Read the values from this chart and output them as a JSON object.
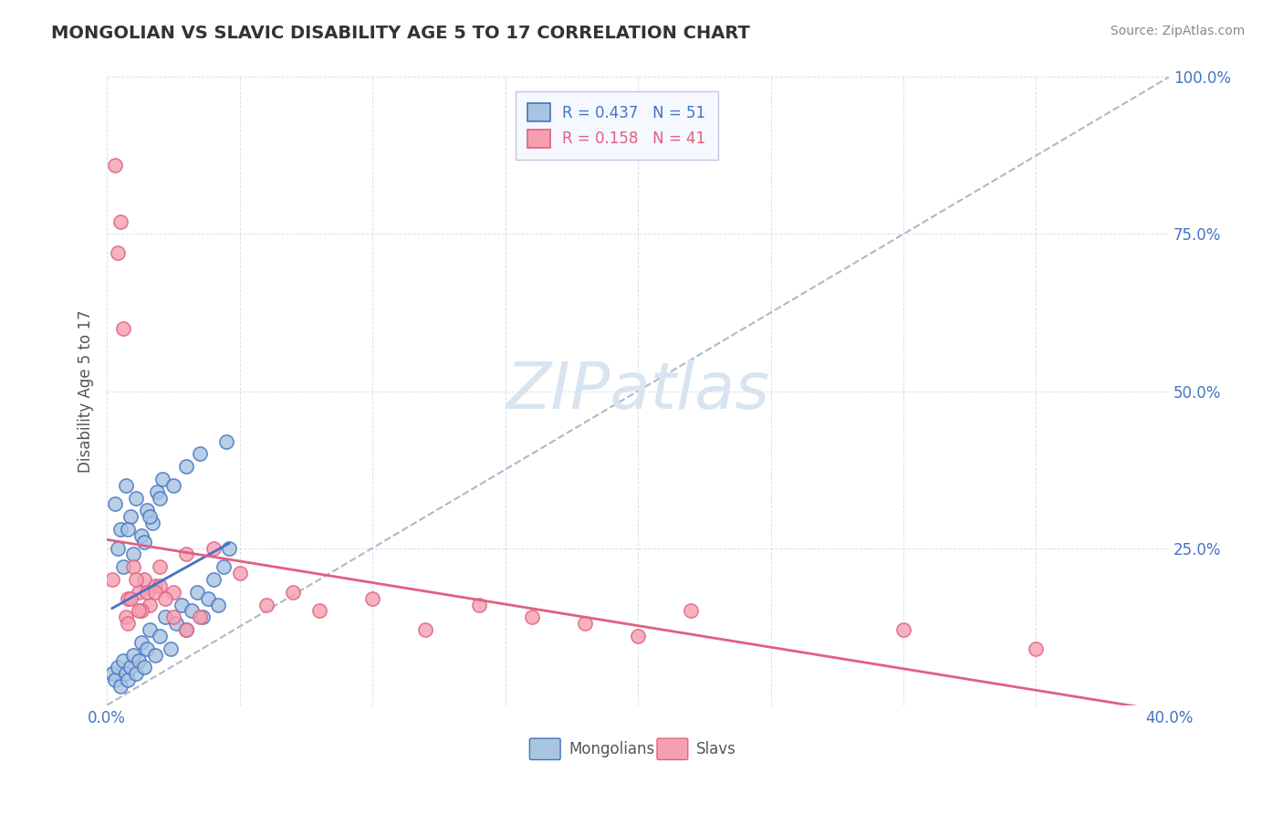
{
  "title": "MONGOLIAN VS SLAVIC DISABILITY AGE 5 TO 17 CORRELATION CHART",
  "source": "Source: ZipAtlas.com",
  "xlabel": "",
  "ylabel": "Disability Age 5 to 17",
  "xlim": [
    0.0,
    0.4
  ],
  "ylim": [
    0.0,
    1.0
  ],
  "xticks": [
    0.0,
    0.05,
    0.1,
    0.15,
    0.2,
    0.25,
    0.3,
    0.35,
    0.4
  ],
  "xticklabels": [
    "0.0%",
    "",
    "",
    "",
    "",
    "",
    "",
    "",
    "40.0%"
  ],
  "yticks": [
    0.0,
    0.25,
    0.5,
    0.75,
    1.0
  ],
  "yticklabels": [
    "",
    "25.0%",
    "50.0%",
    "75.0%",
    "100.0%"
  ],
  "mongolian_R": 0.437,
  "mongolian_N": 51,
  "slavic_R": 0.158,
  "slavic_N": 41,
  "mongolian_color": "#a8c4e0",
  "slavic_color": "#f4a0b0",
  "mongolian_line_color": "#4472c4",
  "slavic_line_color": "#e06080",
  "diagonal_color": "#b0b8c8",
  "watermark_color": "#d8e4f0",
  "background_color": "#ffffff",
  "legend_bg": "#f5f8ff",
  "legend_border": "#c0c8e0",
  "mongolian_x": [
    0.002,
    0.003,
    0.004,
    0.005,
    0.006,
    0.007,
    0.008,
    0.009,
    0.01,
    0.011,
    0.012,
    0.013,
    0.014,
    0.015,
    0.016,
    0.018,
    0.02,
    0.022,
    0.024,
    0.026,
    0.028,
    0.03,
    0.032,
    0.034,
    0.036,
    0.038,
    0.04,
    0.042,
    0.044,
    0.046,
    0.003,
    0.005,
    0.007,
    0.009,
    0.011,
    0.013,
    0.015,
    0.017,
    0.019,
    0.021,
    0.004,
    0.006,
    0.008,
    0.01,
    0.014,
    0.016,
    0.02,
    0.025,
    0.03,
    0.035,
    0.045
  ],
  "mongolian_y": [
    0.05,
    0.04,
    0.06,
    0.03,
    0.07,
    0.05,
    0.04,
    0.06,
    0.08,
    0.05,
    0.07,
    0.1,
    0.06,
    0.09,
    0.12,
    0.08,
    0.11,
    0.14,
    0.09,
    0.13,
    0.16,
    0.12,
    0.15,
    0.18,
    0.14,
    0.17,
    0.2,
    0.16,
    0.22,
    0.25,
    0.32,
    0.28,
    0.35,
    0.3,
    0.33,
    0.27,
    0.31,
    0.29,
    0.34,
    0.36,
    0.25,
    0.22,
    0.28,
    0.24,
    0.26,
    0.3,
    0.33,
    0.35,
    0.38,
    0.4,
    0.42
  ],
  "slavic_x": [
    0.002,
    0.004,
    0.006,
    0.008,
    0.01,
    0.012,
    0.014,
    0.016,
    0.018,
    0.02,
    0.025,
    0.03,
    0.035,
    0.04,
    0.05,
    0.06,
    0.07,
    0.08,
    0.1,
    0.12,
    0.003,
    0.005,
    0.007,
    0.009,
    0.011,
    0.013,
    0.015,
    0.02,
    0.025,
    0.03,
    0.14,
    0.16,
    0.18,
    0.2,
    0.22,
    0.3,
    0.35,
    0.008,
    0.012,
    0.018,
    0.022
  ],
  "slavic_y": [
    0.2,
    0.72,
    0.6,
    0.17,
    0.22,
    0.18,
    0.2,
    0.16,
    0.19,
    0.22,
    0.18,
    0.24,
    0.14,
    0.25,
    0.21,
    0.16,
    0.18,
    0.15,
    0.17,
    0.12,
    0.86,
    0.77,
    0.14,
    0.17,
    0.2,
    0.15,
    0.18,
    0.19,
    0.14,
    0.12,
    0.16,
    0.14,
    0.13,
    0.11,
    0.15,
    0.12,
    0.09,
    0.13,
    0.15,
    0.18,
    0.17
  ]
}
